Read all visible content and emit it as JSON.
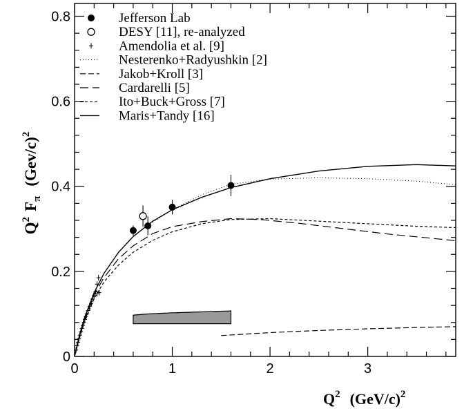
{
  "chart_data": {
    "type": "scatter",
    "title": "",
    "xlabel": {
      "base": "Q",
      "sup": "2",
      "unit": "(GeV/c)",
      "unit_sup": "2"
    },
    "ylabel": {
      "base": "Q",
      "sup": "2",
      "mid": "F",
      "sub": "π",
      "unit": "(Gev/c)",
      "unit_sup": "2"
    },
    "xlim": [
      0,
      3.9
    ],
    "ylim": [
      0,
      0.83
    ],
    "xticks": [
      0,
      1,
      2,
      3
    ],
    "yticks": [
      0,
      0.2,
      0.4,
      0.6,
      0.8
    ],
    "xtick_labels": [
      "0",
      "1",
      "2",
      "3"
    ],
    "ytick_labels": [
      "0",
      "0.2",
      "0.4",
      "0.6",
      "0.8"
    ],
    "legend_position": "top-left",
    "colors": {
      "axis": "#000000",
      "band": "#999999"
    },
    "series": [
      {
        "name": "Jefferson Lab",
        "kind": "points",
        "marker": "filled-circle",
        "points": [
          {
            "x": 0.6,
            "y": 0.296,
            "err": 0.012
          },
          {
            "x": 0.75,
            "y": 0.307,
            "err": 0.022
          },
          {
            "x": 1.0,
            "y": 0.351,
            "err": 0.017
          },
          {
            "x": 1.6,
            "y": 0.402,
            "err": 0.025
          }
        ]
      },
      {
        "name": "DESY [11], re-analyzed",
        "kind": "points",
        "marker": "open-circle",
        "points": [
          {
            "x": 0.7,
            "y": 0.33,
            "err": 0.025
          }
        ]
      },
      {
        "name": "Amendolia et al. [9]",
        "kind": "points",
        "marker": "plus",
        "points": [
          {
            "x": 0.015,
            "y": 0.015
          },
          {
            "x": 0.025,
            "y": 0.025
          },
          {
            "x": 0.035,
            "y": 0.033
          },
          {
            "x": 0.045,
            "y": 0.042
          },
          {
            "x": 0.055,
            "y": 0.05
          },
          {
            "x": 0.065,
            "y": 0.058
          },
          {
            "x": 0.075,
            "y": 0.066
          },
          {
            "x": 0.085,
            "y": 0.073
          },
          {
            "x": 0.095,
            "y": 0.08
          },
          {
            "x": 0.105,
            "y": 0.087
          },
          {
            "x": 0.115,
            "y": 0.094
          },
          {
            "x": 0.125,
            "y": 0.1
          },
          {
            "x": 0.14,
            "y": 0.108
          },
          {
            "x": 0.155,
            "y": 0.118
          },
          {
            "x": 0.17,
            "y": 0.125
          },
          {
            "x": 0.185,
            "y": 0.135
          },
          {
            "x": 0.2,
            "y": 0.143
          },
          {
            "x": 0.215,
            "y": 0.152
          },
          {
            "x": 0.23,
            "y": 0.17
          },
          {
            "x": 0.245,
            "y": 0.185
          },
          {
            "x": 0.23,
            "y": 0.147
          },
          {
            "x": 0.253,
            "y": 0.15
          }
        ]
      },
      {
        "name": "Nesterenko+Radyushkin [2]",
        "kind": "line",
        "dash": "1,3",
        "stroke_width": 1,
        "points": [
          [
            0.75,
            0.308
          ],
          [
            1.0,
            0.345
          ],
          [
            1.3,
            0.38
          ],
          [
            1.6,
            0.405
          ],
          [
            2.0,
            0.417
          ],
          [
            2.5,
            0.42
          ],
          [
            3.0,
            0.418
          ],
          [
            3.5,
            0.412
          ],
          [
            3.9,
            0.404
          ]
        ]
      },
      {
        "name": "Jakob+Kroll [3]",
        "kind": "line",
        "dash": "8,4",
        "stroke_width": 1.2,
        "points": [
          [
            1.5,
            0.049
          ],
          [
            2.0,
            0.056
          ],
          [
            2.5,
            0.061
          ],
          [
            3.0,
            0.065
          ],
          [
            3.5,
            0.068
          ],
          [
            3.9,
            0.07
          ]
        ]
      },
      {
        "name": "Cardarelli [5]",
        "kind": "line",
        "dash": "12,6",
        "stroke_width": 1.2,
        "points": [
          [
            0.0,
            0.0
          ],
          [
            0.05,
            0.045
          ],
          [
            0.1,
            0.085
          ],
          [
            0.2,
            0.145
          ],
          [
            0.3,
            0.185
          ],
          [
            0.45,
            0.23
          ],
          [
            0.6,
            0.26
          ],
          [
            0.8,
            0.289
          ],
          [
            1.0,
            0.305
          ],
          [
            1.3,
            0.317
          ],
          [
            1.6,
            0.324
          ],
          [
            1.9,
            0.322
          ],
          [
            2.3,
            0.313
          ],
          [
            2.7,
            0.302
          ],
          [
            3.2,
            0.288
          ],
          [
            3.6,
            0.279
          ],
          [
            3.9,
            0.272
          ]
        ]
      },
      {
        "name": "Ito+Buck+Gross [7]",
        "kind": "line",
        "dash": "4,3",
        "stroke_width": 1.2,
        "points": [
          [
            0.0,
            0.0
          ],
          [
            0.05,
            0.044
          ],
          [
            0.1,
            0.08
          ],
          [
            0.2,
            0.136
          ],
          [
            0.3,
            0.175
          ],
          [
            0.45,
            0.215
          ],
          [
            0.6,
            0.245
          ],
          [
            0.8,
            0.273
          ],
          [
            1.0,
            0.293
          ],
          [
            1.3,
            0.312
          ],
          [
            1.6,
            0.322
          ],
          [
            2.0,
            0.324
          ],
          [
            2.5,
            0.318
          ],
          [
            3.0,
            0.312
          ],
          [
            3.5,
            0.306
          ],
          [
            3.9,
            0.303
          ]
        ]
      },
      {
        "name": "Maris+Tandy [16]",
        "kind": "line",
        "dash": "",
        "stroke_width": 1.4,
        "points": [
          [
            0.0,
            0.0
          ],
          [
            0.05,
            0.05
          ],
          [
            0.1,
            0.09
          ],
          [
            0.2,
            0.15
          ],
          [
            0.3,
            0.195
          ],
          [
            0.45,
            0.245
          ],
          [
            0.6,
            0.282
          ],
          [
            0.8,
            0.318
          ],
          [
            1.0,
            0.345
          ],
          [
            1.3,
            0.374
          ],
          [
            1.6,
            0.397
          ],
          [
            2.0,
            0.418
          ],
          [
            2.5,
            0.436
          ],
          [
            3.0,
            0.447
          ],
          [
            3.5,
            0.451
          ],
          [
            3.9,
            0.448
          ]
        ]
      }
    ],
    "band": {
      "x": [
        0.6,
        1.6
      ],
      "lower": [
        0.077,
        0.077
      ],
      "upper": [
        0.097,
        0.107
      ]
    }
  }
}
